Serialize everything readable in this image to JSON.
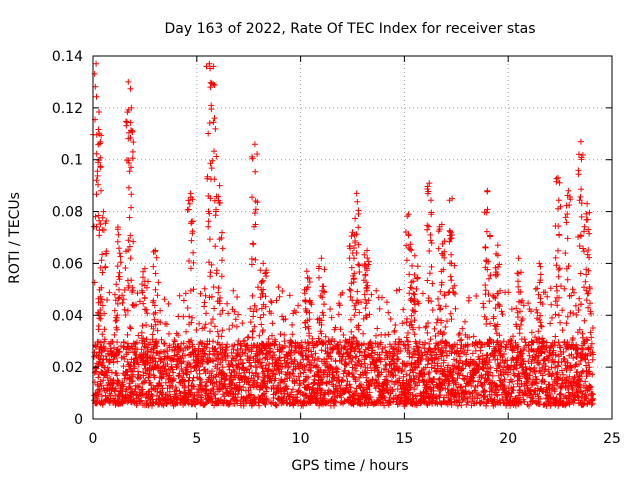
{
  "chart_data": {
    "type": "scatter",
    "title": "Day 163 of 2022, Rate Of TEC Index for receiver stas",
    "xlabel": "GPS time / hours",
    "ylabel": "ROTI / TECUs",
    "xlim": [
      0,
      25
    ],
    "ylim": [
      0,
      0.14
    ],
    "x_ticks": [
      0,
      5,
      10,
      15,
      20,
      25
    ],
    "y_ticks": [
      0,
      0.02,
      0.04,
      0.06,
      0.08,
      0.1,
      0.12,
      0.14
    ],
    "grid": true,
    "marker": "+",
    "color": "#ff0000",
    "series": [
      {
        "name": "stas",
        "baseline": {
          "x_range": [
            0.05,
            24.1
          ],
          "y_range": [
            0.005,
            0.03
          ],
          "step_hours": 0.01
        },
        "bursts": [
          {
            "x": 0.15,
            "y_max": 0.137
          },
          {
            "x": 0.3,
            "y_max": 0.11
          },
          {
            "x": 0.5,
            "y_max": 0.08
          },
          {
            "x": 1.2,
            "y_max": 0.074
          },
          {
            "x": 1.7,
            "y_max": 0.13
          },
          {
            "x": 1.85,
            "y_max": 0.12
          },
          {
            "x": 2.5,
            "y_max": 0.058
          },
          {
            "x": 3.0,
            "y_max": 0.065
          },
          {
            "x": 4.7,
            "y_max": 0.087
          },
          {
            "x": 5.6,
            "y_max": 0.137
          },
          {
            "x": 5.8,
            "y_max": 0.136
          },
          {
            "x": 6.1,
            "y_max": 0.09
          },
          {
            "x": 7.8,
            "y_max": 0.106
          },
          {
            "x": 8.2,
            "y_max": 0.06
          },
          {
            "x": 10.3,
            "y_max": 0.057
          },
          {
            "x": 11.0,
            "y_max": 0.062
          },
          {
            "x": 12.5,
            "y_max": 0.072
          },
          {
            "x": 12.7,
            "y_max": 0.087
          },
          {
            "x": 13.2,
            "y_max": 0.065
          },
          {
            "x": 15.2,
            "y_max": 0.079
          },
          {
            "x": 15.5,
            "y_max": 0.063
          },
          {
            "x": 16.2,
            "y_max": 0.091
          },
          {
            "x": 16.8,
            "y_max": 0.075
          },
          {
            "x": 17.3,
            "y_max": 0.085
          },
          {
            "x": 19.0,
            "y_max": 0.088
          },
          {
            "x": 19.5,
            "y_max": 0.067
          },
          {
            "x": 20.5,
            "y_max": 0.062
          },
          {
            "x": 21.5,
            "y_max": 0.06
          },
          {
            "x": 22.4,
            "y_max": 0.093
          },
          {
            "x": 22.9,
            "y_max": 0.088
          },
          {
            "x": 23.5,
            "y_max": 0.107
          },
          {
            "x": 23.8,
            "y_max": 0.083
          }
        ]
      }
    ]
  }
}
